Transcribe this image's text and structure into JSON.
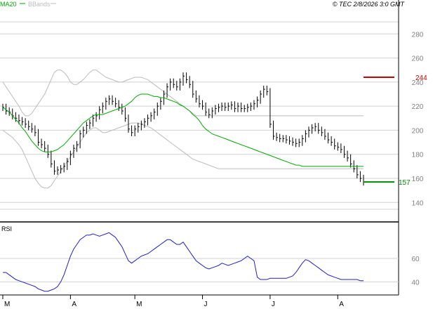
{
  "header": {
    "timestamp": "TEC 2/8/2026 3:0 GMT",
    "copyright_symbol": "©"
  },
  "colors": {
    "ma": "#00aa00",
    "bbands": "#bbbbbb",
    "rsi": "#1f1fcc",
    "resistance": "#cc0000",
    "support": "#008800",
    "price": "#000000",
    "grid": "#d0d0d0"
  },
  "chart_data": [
    {
      "type": "line",
      "panel": "price",
      "legend": [
        {
          "name": "MA20",
          "color": "#00aa00"
        },
        {
          "name": "BBands",
          "color": "#bbbbbb"
        }
      ],
      "y_ticks": [
        140,
        160,
        180,
        200,
        220,
        240,
        260,
        280
      ],
      "ylim": [
        125,
        300
      ],
      "x_tick_labels": [
        {
          "label": "M",
          "x": 0
        },
        {
          "label": "A",
          "x": 21
        },
        {
          "label": "M",
          "x": 41
        },
        {
          "label": "J",
          "x": 62
        },
        {
          "label": "J",
          "x": 83
        },
        {
          "label": "A",
          "x": 104
        }
      ],
      "xlim": [
        0,
        112
      ],
      "close": [
        219,
        216,
        215,
        212,
        210,
        208,
        207,
        205,
        203,
        201,
        198,
        190,
        188,
        185,
        180,
        172,
        166,
        167,
        168,
        170,
        174,
        180,
        185,
        188,
        197,
        200,
        204,
        206,
        210,
        212,
        217,
        220,
        224,
        226,
        224,
        222,
        219,
        216,
        210,
        201,
        198,
        201,
        203,
        205,
        207,
        210,
        212,
        215,
        220,
        224,
        230,
        236,
        240,
        238,
        236,
        240,
        245,
        242,
        238,
        230,
        226,
        222,
        220,
        215,
        213,
        216,
        218,
        219,
        220,
        219,
        220,
        221,
        218,
        220,
        218,
        218,
        219,
        220,
        222,
        225,
        230,
        234,
        232,
        205,
        195,
        194,
        193,
        193,
        192,
        191,
        190,
        189,
        190,
        193,
        197,
        200,
        202,
        203,
        200,
        198,
        195,
        192,
        190,
        187,
        186,
        184,
        180,
        177,
        172,
        168,
        163,
        160,
        157
      ],
      "ma20": [
        219,
        217,
        215,
        212,
        209,
        206,
        202,
        199,
        195,
        191,
        188,
        185,
        183,
        182,
        182,
        182,
        183,
        184,
        186,
        188,
        191,
        194,
        197,
        200,
        203,
        206,
        208,
        210,
        212,
        213,
        213,
        213,
        214,
        215,
        216,
        217,
        218,
        219,
        220,
        222,
        224,
        227,
        229,
        230,
        230,
        230,
        229,
        228,
        228,
        227,
        227,
        226,
        225,
        224,
        223,
        221,
        220,
        218,
        216,
        213,
        211,
        208,
        204,
        201,
        199,
        197,
        196,
        195,
        194,
        193,
        192,
        191,
        190,
        189,
        188,
        187,
        186,
        185,
        184,
        183,
        182,
        181,
        180,
        179,
        178,
        177,
        176,
        175,
        174,
        173,
        172,
        171,
        171,
        170,
        170,
        170,
        170,
        170,
        170,
        170,
        170,
        170,
        170,
        170,
        170,
        170,
        170,
        170,
        170,
        170,
        170,
        170,
        170
      ],
      "bb_upper": [
        240,
        236,
        232,
        228,
        224,
        220,
        215,
        212,
        212,
        214,
        218,
        222,
        226,
        230,
        236,
        242,
        248,
        250,
        250,
        248,
        245,
        240,
        238,
        238,
        240,
        242,
        245,
        248,
        250,
        250,
        248,
        246,
        244,
        243,
        242,
        241,
        240,
        240,
        241,
        242,
        243,
        244,
        244,
        244,
        243,
        242,
        240,
        238,
        236,
        234,
        232,
        230,
        228,
        226,
        224,
        222,
        220,
        218,
        216,
        214,
        212,
        212,
        212,
        212,
        212,
        212,
        212,
        212,
        212,
        212,
        212,
        212,
        212,
        212,
        212,
        212,
        212,
        212,
        212,
        212,
        212,
        212,
        212,
        212,
        212,
        212,
        212,
        212,
        212,
        212,
        212,
        212,
        212,
        212,
        212,
        212,
        212,
        212,
        212,
        212,
        212,
        212,
        212,
        212,
        212,
        212,
        212,
        212,
        212,
        212,
        212,
        212,
        212
      ],
      "bb_lower": [
        200,
        198,
        196,
        194,
        191,
        188,
        184,
        178,
        172,
        166,
        160,
        156,
        153,
        152,
        152,
        154,
        158,
        162,
        166,
        170,
        174,
        178,
        182,
        186,
        190,
        194,
        198,
        200,
        202,
        202,
        200,
        198,
        198,
        199,
        200,
        201,
        202,
        203,
        204,
        205,
        206,
        206,
        206,
        205,
        204,
        203,
        202,
        200,
        198,
        196,
        194,
        192,
        190,
        188,
        186,
        184,
        182,
        180,
        178,
        176,
        175,
        174,
        173,
        172,
        171,
        170,
        169,
        168,
        168,
        168,
        168,
        168,
        168,
        168,
        168,
        168,
        168,
        168,
        168,
        168,
        168,
        168,
        168,
        168,
        168,
        168,
        168,
        168,
        168,
        168,
        168,
        168,
        168,
        168,
        168,
        168,
        168,
        168,
        168,
        168,
        168,
        168,
        168,
        168,
        168,
        168,
        168,
        168,
        168,
        168,
        168,
        168,
        168
      ],
      "series_note_values": [
        {
          "name": "resistance",
          "value": 244
        },
        {
          "name": "support",
          "value": 157
        }
      ],
      "levels": [
        {
          "label": "244",
          "value": 244,
          "color": "#cc0000"
        },
        {
          "label": "157",
          "value": 157,
          "color": "#008800"
        }
      ]
    },
    {
      "type": "line",
      "panel": "rsi",
      "title": "RSI",
      "y_ticks": [
        40,
        60
      ],
      "ylim": [
        30,
        90
      ],
      "values": [
        48,
        48,
        46,
        44,
        42,
        41,
        40,
        39,
        38,
        37,
        36,
        34,
        33,
        32,
        32,
        33,
        34,
        36,
        40,
        46,
        54,
        62,
        68,
        72,
        76,
        78,
        80,
        80,
        81,
        80,
        79,
        80,
        81,
        82,
        80,
        78,
        74,
        70,
        64,
        58,
        56,
        58,
        60,
        62,
        63,
        64,
        66,
        68,
        70,
        72,
        74,
        76,
        76,
        74,
        72,
        72,
        74,
        70,
        66,
        62,
        58,
        56,
        54,
        52,
        51,
        52,
        53,
        54,
        56,
        55,
        54,
        55,
        56,
        57,
        58,
        60,
        62,
        60,
        58,
        44,
        42,
        42,
        42,
        43,
        43,
        43,
        43,
        43,
        43,
        44,
        45,
        48,
        52,
        56,
        59,
        58,
        56,
        54,
        52,
        50,
        48,
        46,
        45,
        44,
        43,
        42,
        42,
        42,
        42,
        42,
        42,
        41,
        41
      ]
    }
  ]
}
